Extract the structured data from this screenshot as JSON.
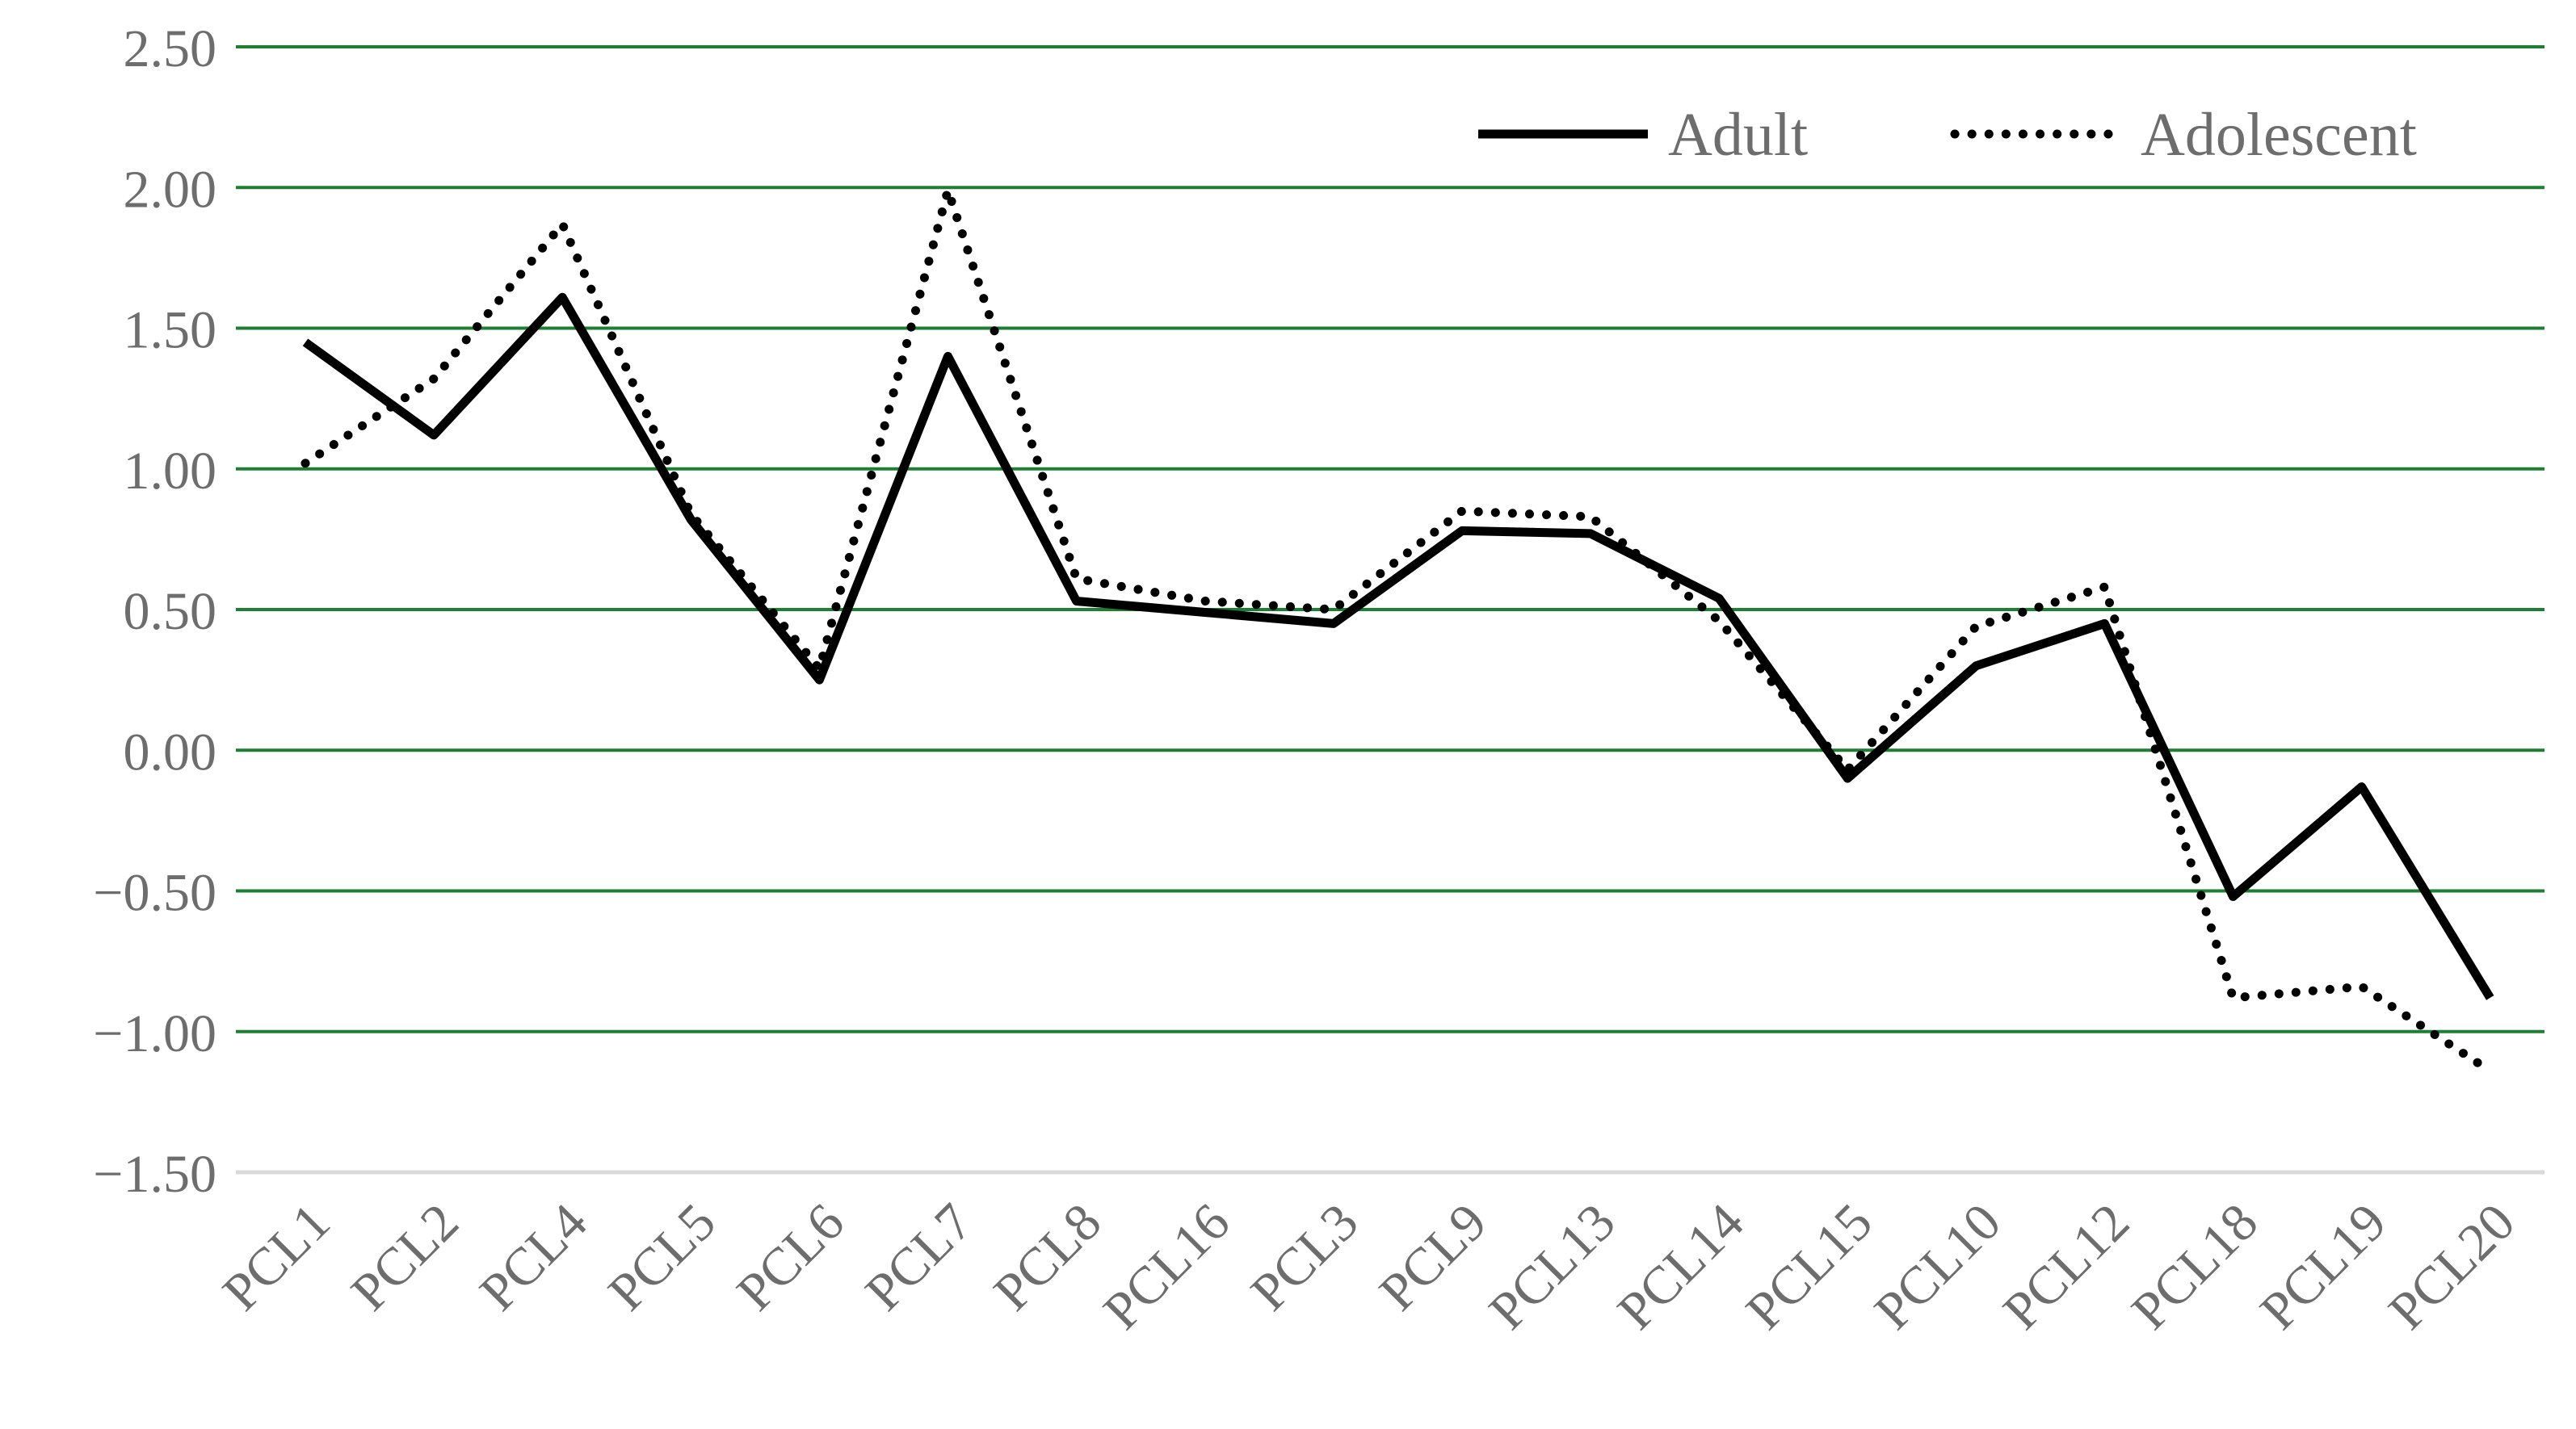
{
  "chart_data": {
    "type": "line",
    "title": "",
    "xlabel": "",
    "ylabel": "",
    "categories": [
      "PCL1",
      "PCL2",
      "PCL4",
      "PCL5",
      "PCL6",
      "PCL7",
      "PCL8",
      "PCL16",
      "PCL3",
      "PCL9",
      "PCL13",
      "PCL14",
      "PCL15",
      "PCL10",
      "PCL12",
      "PCL18",
      "PCL19",
      "PCL20"
    ],
    "ylim": [
      -1.5,
      2.5
    ],
    "yticks": [
      "2.50",
      "2.00",
      "1.50",
      "1.00",
      "0.50",
      "0.00",
      "−0.50",
      "−1.00",
      "−1.50"
    ],
    "ytick_values": [
      2.5,
      2.0,
      1.5,
      1.0,
      0.5,
      0.0,
      -0.5,
      -1.0,
      -1.5
    ],
    "grid": true,
    "legend_position": "top-right",
    "series": [
      {
        "name": "Adult",
        "style": "solid",
        "color": "#000000",
        "values": [
          1.45,
          1.12,
          1.61,
          0.82,
          0.25,
          1.4,
          0.53,
          0.49,
          0.45,
          0.78,
          0.77,
          0.54,
          -0.1,
          0.3,
          0.45,
          -0.52,
          -0.13,
          -0.88
        ]
      },
      {
        "name": "Adolescent",
        "style": "dotted",
        "color": "#000000",
        "values": [
          1.02,
          1.32,
          1.87,
          0.84,
          0.29,
          1.99,
          0.61,
          0.53,
          0.5,
          0.85,
          0.83,
          0.46,
          -0.07,
          0.44,
          0.58,
          -0.88,
          -0.84,
          -1.14
        ]
      }
    ],
    "colors": {
      "gridline": "#1e7e34",
      "baseline": "#d9d9d9",
      "label_text": "#6d6d6d"
    }
  }
}
